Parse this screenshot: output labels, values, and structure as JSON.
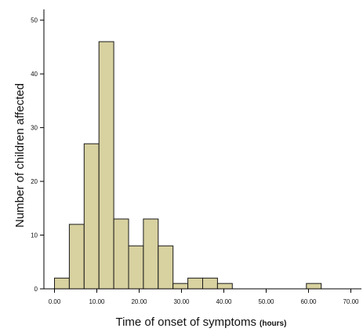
{
  "chart_data": {
    "type": "bar",
    "subtype": "histogram",
    "xlabel": "Time of onset of symptoms",
    "xlabel_unit": "(hours)",
    "ylabel": "Number of  children affected",
    "xlim": [
      -2.5,
      72.5
    ],
    "ylim": [
      0,
      52
    ],
    "x_ticks": [
      0,
      10,
      20,
      30,
      40,
      50,
      60,
      70
    ],
    "x_tick_labels": [
      "0.00",
      "10.00",
      "20.00",
      "30.00",
      "40.00",
      "50.00",
      "60.00",
      "70.00"
    ],
    "y_ticks": [
      0,
      10,
      20,
      30,
      40,
      50
    ],
    "y_tick_labels": [
      "0",
      "10",
      "20",
      "30",
      "40",
      "50"
    ],
    "bin_width": 3.5,
    "bin_starts": [
      0,
      3.5,
      7,
      10.5,
      14,
      17.5,
      21,
      24.5,
      28,
      31.5,
      35,
      38.5,
      42,
      45.5,
      49,
      52.5,
      56,
      59.5
    ],
    "values": [
      2,
      12,
      27,
      46,
      13,
      8,
      13,
      8,
      1,
      2,
      2,
      1,
      0,
      0,
      0,
      0,
      0,
      1
    ],
    "colors": {
      "bar_fill": "#d8d1a0",
      "bar_stroke": "#1a1a1a",
      "axis": "#000000"
    },
    "grid": false
  }
}
